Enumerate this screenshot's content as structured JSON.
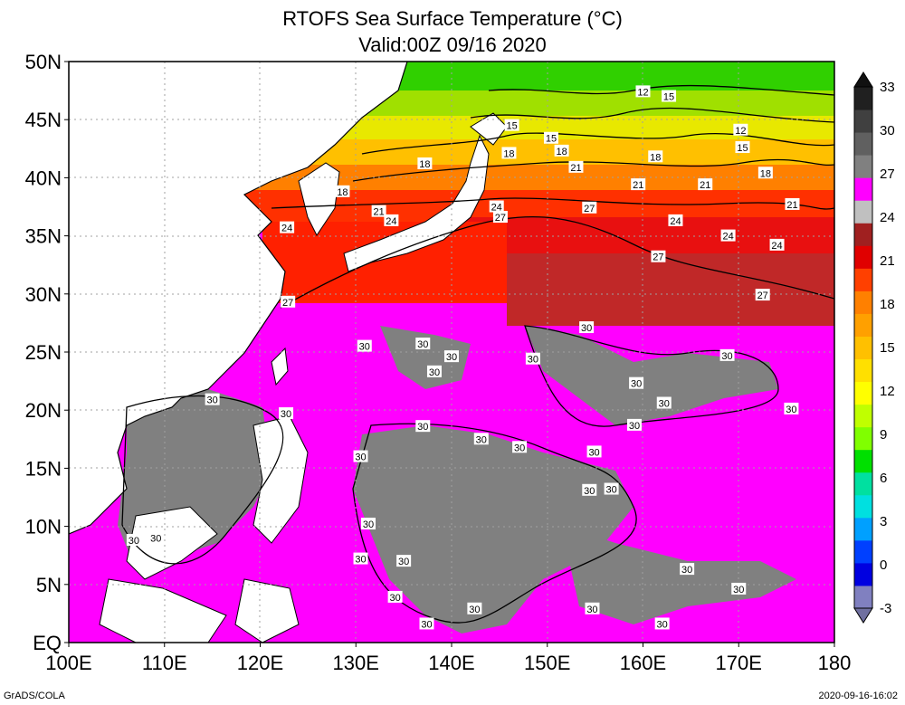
{
  "title": "RTOFS Sea Surface Temperature (°C)",
  "subtitle": "Valid:00Z 09/16 2020",
  "axes": {
    "lat_labels": [
      "EQ",
      "5N",
      "10N",
      "15N",
      "20N",
      "25N",
      "30N",
      "35N",
      "40N",
      "45N",
      "50N"
    ],
    "lon_labels": [
      "100E",
      "110E",
      "120E",
      "130E",
      "140E",
      "150E",
      "160E",
      "170E",
      "180"
    ]
  },
  "colorbar": {
    "levels": [
      -3,
      0,
      3,
      6,
      9,
      12,
      15,
      18,
      21,
      24,
      27,
      30,
      33
    ],
    "labels": [
      "33",
      "30",
      "27",
      "24",
      "21",
      "18",
      "15",
      "12",
      "9",
      "6",
      "3",
      "0",
      "-3"
    ],
    "colors": [
      "#8080c0",
      "#0000e0",
      "#0040ff",
      "#00a0ff",
      "#00e0e0",
      "#00e0a0",
      "#00e000",
      "#80ff00",
      "#c0ff00",
      "#ffff00",
      "#ffe000",
      "#ffc000",
      "#ffa000",
      "#ff8000",
      "#ff4000",
      "#e00000",
      "#a02020",
      "#c0c0c0",
      "#ff00ff",
      "#808080",
      "#606060",
      "#404040",
      "#202020"
    ]
  },
  "contour_labels": [
    {
      "text": "12",
      "lon": 160.0,
      "lat": 47.4
    },
    {
      "text": "15",
      "lon": 162.7,
      "lat": 47.0
    },
    {
      "text": "15",
      "lon": 146.3,
      "lat": 44.5
    },
    {
      "text": "12",
      "lon": 170.2,
      "lat": 44.1
    },
    {
      "text": "15",
      "lon": 150.4,
      "lat": 43.4
    },
    {
      "text": "15",
      "lon": 170.4,
      "lat": 42.6
    },
    {
      "text": "18",
      "lon": 146.0,
      "lat": 42.1
    },
    {
      "text": "18",
      "lon": 151.5,
      "lat": 42.3
    },
    {
      "text": "18",
      "lon": 161.3,
      "lat": 41.8
    },
    {
      "text": "18",
      "lon": 137.2,
      "lat": 41.2
    },
    {
      "text": "21",
      "lon": 153.0,
      "lat": 40.9
    },
    {
      "text": "18",
      "lon": 172.8,
      "lat": 40.4
    },
    {
      "text": "18",
      "lon": 128.6,
      "lat": 38.8
    },
    {
      "text": "21",
      "lon": 159.5,
      "lat": 39.4
    },
    {
      "text": "21",
      "lon": 166.5,
      "lat": 39.4
    },
    {
      "text": "21",
      "lon": 175.6,
      "lat": 37.7
    },
    {
      "text": "24",
      "lon": 144.7,
      "lat": 37.5
    },
    {
      "text": "27",
      "lon": 154.4,
      "lat": 37.4
    },
    {
      "text": "21",
      "lon": 132.4,
      "lat": 37.1
    },
    {
      "text": "27",
      "lon": 145.1,
      "lat": 36.6
    },
    {
      "text": "24",
      "lon": 133.7,
      "lat": 36.3
    },
    {
      "text": "24",
      "lon": 163.4,
      "lat": 36.3
    },
    {
      "text": "24",
      "lon": 122.8,
      "lat": 35.7
    },
    {
      "text": "24",
      "lon": 168.9,
      "lat": 35.0
    },
    {
      "text": "24",
      "lon": 174.0,
      "lat": 34.2
    },
    {
      "text": "27",
      "lon": 161.6,
      "lat": 33.2
    },
    {
      "text": "27",
      "lon": 172.5,
      "lat": 29.9
    },
    {
      "text": "27",
      "lon": 122.9,
      "lat": 29.3
    },
    {
      "text": "30",
      "lon": 154.1,
      "lat": 27.1
    },
    {
      "text": "30",
      "lon": 130.9,
      "lat": 25.5
    },
    {
      "text": "30",
      "lon": 137.0,
      "lat": 25.7
    },
    {
      "text": "30",
      "lon": 140.0,
      "lat": 24.6
    },
    {
      "text": "30",
      "lon": 148.5,
      "lat": 24.4
    },
    {
      "text": "30",
      "lon": 168.8,
      "lat": 24.7
    },
    {
      "text": "30",
      "lon": 138.2,
      "lat": 23.3
    },
    {
      "text": "30",
      "lon": 159.3,
      "lat": 22.3
    },
    {
      "text": "30",
      "lon": 115.0,
      "lat": 20.9
    },
    {
      "text": "30",
      "lon": 162.2,
      "lat": 20.6
    },
    {
      "text": "30",
      "lon": 175.5,
      "lat": 20.1
    },
    {
      "text": "30",
      "lon": 122.7,
      "lat": 19.7
    },
    {
      "text": "30",
      "lon": 137.0,
      "lat": 18.6
    },
    {
      "text": "30",
      "lon": 159.1,
      "lat": 18.7
    },
    {
      "text": "30",
      "lon": 143.1,
      "lat": 17.5
    },
    {
      "text": "30",
      "lon": 147.1,
      "lat": 16.8
    },
    {
      "text": "30",
      "lon": 154.9,
      "lat": 16.4
    },
    {
      "text": "30",
      "lon": 130.5,
      "lat": 16.0
    },
    {
      "text": "30",
      "lon": 154.4,
      "lat": 13.1
    },
    {
      "text": "30",
      "lon": 156.7,
      "lat": 13.2
    },
    {
      "text": "30",
      "lon": 131.3,
      "lat": 10.2
    },
    {
      "text": "30",
      "lon": 106.8,
      "lat": 8.8
    },
    {
      "text": "30",
      "lon": 109.1,
      "lat": 9.0
    },
    {
      "text": "30",
      "lon": 130.5,
      "lat": 7.2
    },
    {
      "text": "30",
      "lon": 135.0,
      "lat": 7.0
    },
    {
      "text": "30",
      "lon": 164.6,
      "lat": 6.3
    },
    {
      "text": "30",
      "lon": 170.0,
      "lat": 4.6
    },
    {
      "text": "30",
      "lon": 134.1,
      "lat": 3.9
    },
    {
      "text": "30",
      "lon": 154.7,
      "lat": 2.9
    },
    {
      "text": "30",
      "lon": 142.4,
      "lat": 2.9
    },
    {
      "text": "30",
      "lon": 137.4,
      "lat": 1.6
    },
    {
      "text": "30",
      "lon": 162.0,
      "lat": 1.6
    }
  ],
  "footer": {
    "left": "GrADS/COLA",
    "right": "2020-09-16-16:02"
  }
}
